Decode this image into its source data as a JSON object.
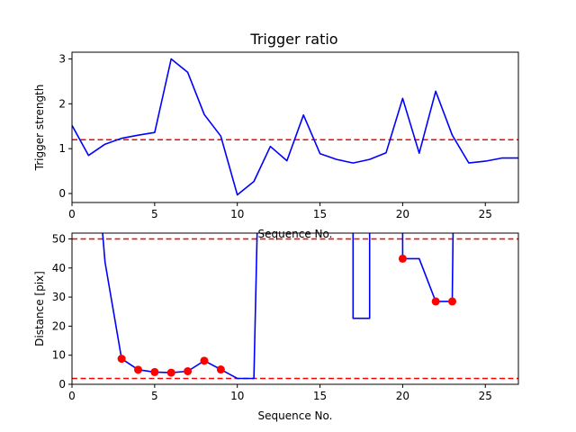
{
  "figure": {
    "title": "Trigger ratio"
  },
  "chart_data": [
    {
      "type": "line",
      "title": "Trigger ratio",
      "xlabel": "Sequence No.",
      "ylabel": "Trigger strength",
      "xlim": [
        0,
        27
      ],
      "ylim": [
        -0.2,
        3.15
      ],
      "xticks": [
        0,
        5,
        10,
        15,
        20,
        25
      ],
      "yticks": [
        0,
        1,
        2,
        3
      ],
      "grid": false,
      "series": [
        {
          "color": "#0000ff",
          "x": [
            0,
            1,
            2,
            3,
            4,
            5,
            6,
            7,
            8,
            9,
            10,
            11,
            12,
            13,
            14,
            15,
            16,
            17,
            18,
            19,
            20,
            21,
            22,
            23,
            24,
            25,
            26,
            27
          ],
          "values": [
            1.52,
            0.85,
            1.1,
            1.23,
            1.3,
            1.36,
            3.0,
            2.7,
            1.76,
            1.28,
            -0.03,
            0.27,
            1.05,
            0.73,
            1.75,
            0.89,
            0.76,
            0.68,
            0.76,
            0.91,
            2.12,
            0.9,
            2.28,
            1.3,
            0.68,
            0.72,
            0.79,
            0.79
          ]
        }
      ],
      "hlines": [
        {
          "y": 1.2,
          "color": "#ff0000",
          "style": "dashed"
        }
      ]
    },
    {
      "type": "line",
      "title": "",
      "xlabel": "Sequence No.",
      "ylabel": "Distance [pix]",
      "xlim": [
        0,
        27
      ],
      "ylim": [
        0,
        52
      ],
      "xticks": [
        0,
        5,
        10,
        15,
        20,
        25
      ],
      "yticks": [
        0,
        10,
        20,
        30,
        40,
        50
      ],
      "grid": false,
      "series": [
        {
          "color": "#0000ff",
          "segments": [
            {
              "x": [
                1.85,
                2,
                3,
                4,
                5,
                6,
                7,
                8,
                9,
                10,
                11,
                11.2
              ],
              "values": [
                52,
                42,
                8.8,
                5.0,
                4.2,
                4.0,
                4.5,
                8.1,
                5.1,
                2.0,
                2.0,
                52
              ]
            },
            {
              "x": [
                17,
                17,
                18,
                18
              ],
              "values": [
                52,
                22.7,
                22.7,
                52
              ]
            },
            {
              "x": [
                20,
                20,
                21,
                22,
                23,
                23.05
              ],
              "values": [
                52,
                43.2,
                43.2,
                28.5,
                28.5,
                52
              ]
            }
          ]
        },
        {
          "color": "#ff0000",
          "marker": "o",
          "x": [
            3,
            4,
            5,
            6,
            7,
            8,
            9,
            20,
            22,
            23
          ],
          "values": [
            8.8,
            5.0,
            4.2,
            4.0,
            4.5,
            8.1,
            5.1,
            43.2,
            28.5,
            28.5
          ]
        }
      ],
      "hlines": [
        {
          "y": 50,
          "color": "#ff0000",
          "style": "dashed"
        },
        {
          "y": 2,
          "color": "#ff0000",
          "style": "dashed"
        }
      ]
    }
  ]
}
